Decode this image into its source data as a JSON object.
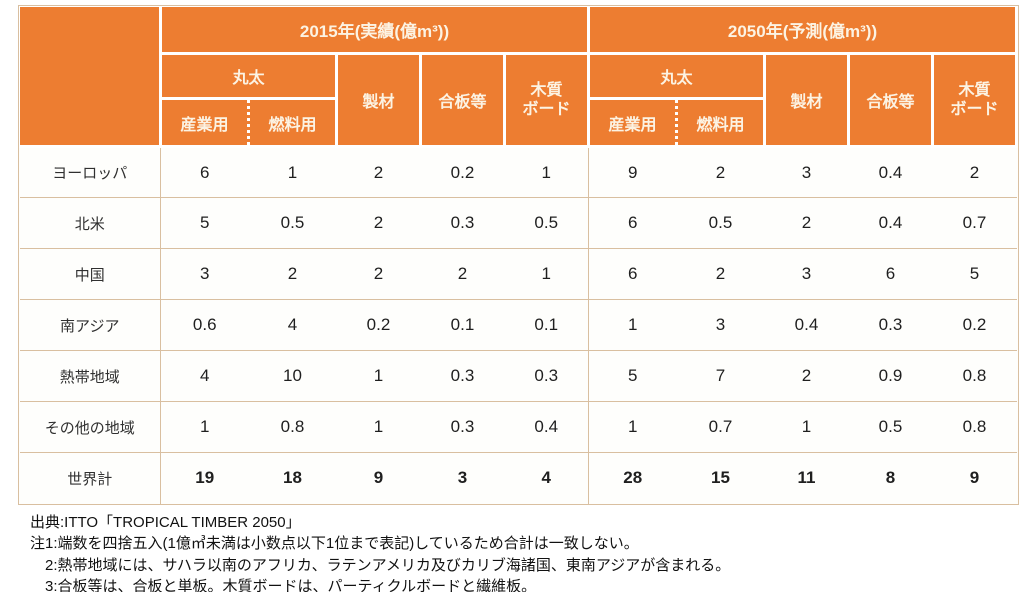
{
  "colors": {
    "accent_orange": "#ED7D31",
    "header_text": "#FCF3E3",
    "grid_tan": "#D9BFA0"
  },
  "table": {
    "header": {
      "s2015": {
        "title": "2015年(実績(億m³))",
        "maruta": "丸太",
        "sangyou": "産業用",
        "nenryou": "燃料用",
        "seizai": "製材",
        "gouban": "合板等",
        "board": "木質\nボード"
      },
      "s2050": {
        "title": "2050年(予測(億m³))",
        "maruta": "丸太",
        "sangyou": "産業用",
        "nenryou": "燃料用",
        "seizai": "製材",
        "gouban": "合板等",
        "board": "木質\nボード"
      }
    },
    "rows": [
      {
        "label": "ヨーロッパ",
        "v": [
          "6",
          "1",
          "2",
          "0.2",
          "1",
          "9",
          "2",
          "3",
          "0.4",
          "2"
        ]
      },
      {
        "label": "北米",
        "v": [
          "5",
          "0.5",
          "2",
          "0.3",
          "0.5",
          "6",
          "0.5",
          "2",
          "0.4",
          "0.7"
        ]
      },
      {
        "label": "中国",
        "v": [
          "3",
          "2",
          "2",
          "2",
          "1",
          "6",
          "2",
          "3",
          "6",
          "5"
        ]
      },
      {
        "label": "南アジア",
        "v": [
          "0.6",
          "4",
          "0.2",
          "0.1",
          "0.1",
          "1",
          "3",
          "0.4",
          "0.3",
          "0.2"
        ]
      },
      {
        "label": "熱帯地域",
        "v": [
          "4",
          "10",
          "1",
          "0.3",
          "0.3",
          "5",
          "7",
          "2",
          "0.9",
          "0.8"
        ]
      },
      {
        "label": "その他の地域",
        "v": [
          "1",
          "0.8",
          "1",
          "0.3",
          "0.4",
          "1",
          "0.7",
          "1",
          "0.5",
          "0.8"
        ]
      },
      {
        "label": "世界計",
        "v": [
          "19",
          "18",
          "9",
          "3",
          "4",
          "28",
          "15",
          "11",
          "8",
          "9"
        ]
      }
    ]
  },
  "footer": {
    "source": "出典:ITTO「TROPICAL TIMBER 2050」",
    "note1": "注1:端数を四捨五入(1億㎥未満は小数点以下1位まで表記)しているため合計は一致しない。",
    "note2": "2:熱帯地域には、サハラ以南のアフリカ、ラテンアメリカ及びカリブ海諸国、東南アジアが含まれる。",
    "note3": "3:合板等は、合板と単板。木質ボードは、パーティクルボードと繊維板。"
  }
}
